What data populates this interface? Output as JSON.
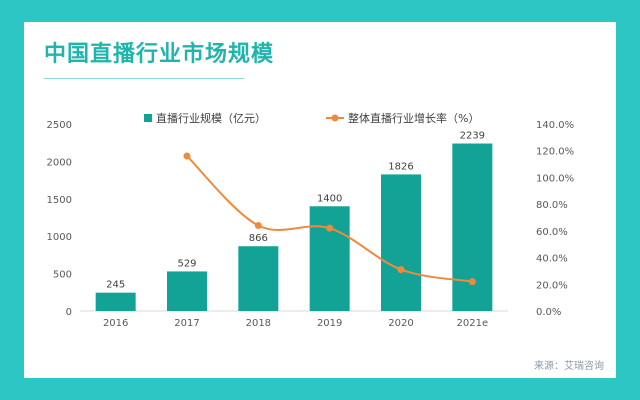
{
  "title": "中国直播行业市场规模",
  "source": "来源：艾瑞咨询",
  "colors": {
    "frame": "#2cc6c4",
    "title": "#1fb5ad",
    "bar": "#12a396",
    "line": "#ef8a3a",
    "axis_text": "#595959",
    "gridline": "#d9d9d9"
  },
  "chart_data": {
    "type": "bar",
    "title": "中国直播行业市场规模",
    "categories": [
      "2016",
      "2017",
      "2018",
      "2019",
      "2020",
      "2021e"
    ],
    "series": [
      {
        "name": "直播行业规模（亿元）",
        "kind": "bar",
        "axis": "left",
        "values": [
          245,
          529,
          866,
          1400,
          1826,
          2239
        ],
        "labels": [
          "245",
          "529",
          "866",
          "1400",
          "1826",
          "2239"
        ]
      },
      {
        "name": "整体直播行业增长率（%）",
        "kind": "line",
        "axis": "right",
        "values": [
          null,
          116,
          64,
          62,
          31,
          22
        ]
      }
    ],
    "ylim_left": [
      0,
      2500
    ],
    "yticks_left": [
      "0",
      "500",
      "1000",
      "1500",
      "2000",
      "2500"
    ],
    "ylim_right": [
      0,
      140
    ],
    "yticks_right": [
      "0.0%",
      "20.0%",
      "40.0%",
      "60.0%",
      "80.0%",
      "100.0%",
      "120.0%",
      "140.0%"
    ],
    "legend_position": "top"
  }
}
